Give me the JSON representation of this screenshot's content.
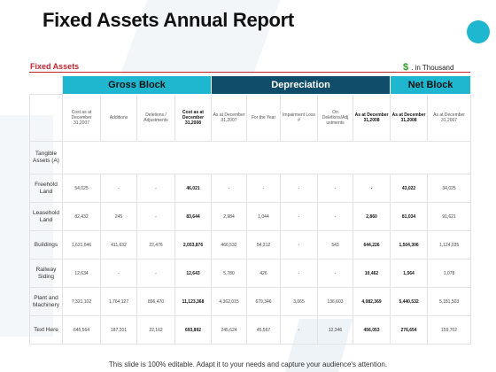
{
  "title": "Fixed Assets Annual Report",
  "section_label": "Fixed Assets",
  "unit": {
    "symbol": "$",
    "text": ". in Thousand"
  },
  "groups": {
    "gross": "Gross Block",
    "depreciation": "Depreciation",
    "net": "Net Block"
  },
  "columns": [
    "Cost as at December 31,2007",
    "Additions",
    "Deletions / Adjustments",
    "Cost as at December 31,2008",
    "As at December 31,2007",
    "For the Year",
    "Impairment Loss #",
    "On Deletions/Adj ustments",
    "As at December 31,2008",
    "As at December 31,2008",
    "As at December 31,2007"
  ],
  "category": "Tangible Assets (A)",
  "rows": [
    {
      "label": "Freehold Land",
      "cells": [
        "54,025",
        "-",
        "-",
        "46,021",
        "-",
        "-",
        "-",
        "-",
        "-",
        "43,022",
        "34,025"
      ]
    },
    {
      "label": "Leasehold Land",
      "cells": [
        "82,432",
        "245",
        "-",
        "83,644",
        "2,984",
        "1,044",
        "-",
        "-",
        "2,860",
        "81,034",
        "91,621"
      ]
    },
    {
      "label": "Buildings",
      "cells": [
        "1,621,646",
        "411,632",
        "22,476",
        "2,053,876",
        "466,532",
        "54,212",
        "-",
        "543",
        "644,226",
        "1,504,306",
        "1,124,035"
      ]
    },
    {
      "label": "Railway Siding",
      "cells": [
        "12,634",
        "-",
        "-",
        "12,643",
        "5,780",
        "426",
        "-",
        "-",
        "10,462",
        "1,564",
        "1,078"
      ]
    },
    {
      "label": "Plant and Machinery",
      "cells": [
        "7,321,102",
        "1,764,127",
        "896,470",
        "11,123,368",
        "4,362,015",
        "679,346",
        "3,065",
        "136,603",
        "4,082,369",
        "5,440,532",
        "5,181,503"
      ]
    },
    {
      "label": "Text Here",
      "cells": [
        "645,564",
        "187,201",
        "22,162",
        "693,892",
        "245,624",
        "45,567",
        "-",
        "12,346",
        "456,053",
        "276,654",
        "159,702"
      ]
    }
  ],
  "footer": "This slide is 100% editable. Adapt it to your needs and capture your audience's attention."
}
